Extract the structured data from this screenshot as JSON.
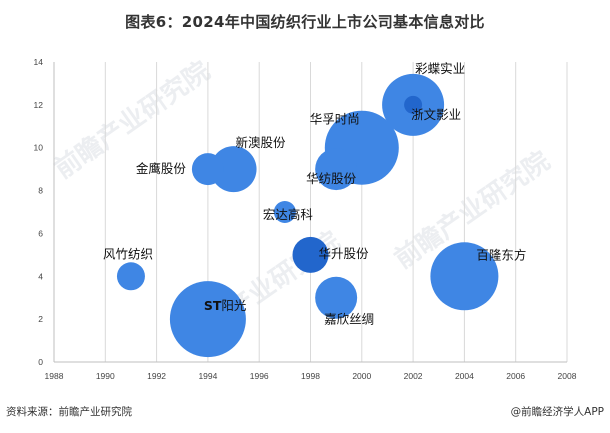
{
  "title": "图表6：2024年中国纺织行业上市公司基本信息对比",
  "footer": {
    "source": "资料来源：前瞻产业研究院",
    "credit": "@前瞻经济学人APP"
  },
  "watermark": "前瞻产业研究院",
  "colors": {
    "bubble": "#3f86e4",
    "bubble_dark": "#2266cc",
    "grid": "#d9d9d9",
    "axis": "#bfbfbf"
  },
  "chart_data": {
    "type": "bubble",
    "title": "图表6：2024年中国纺织行业上市公司基本信息对比",
    "xlabel": "",
    "ylabel": "",
    "xlim": [
      1988,
      2008
    ],
    "ylim": [
      0,
      14
    ],
    "x_ticks": [
      1988,
      1990,
      1992,
      1994,
      1996,
      1998,
      2000,
      2002,
      2004,
      2006,
      2008
    ],
    "y_ticks": [
      0,
      2,
      4,
      6,
      8,
      10,
      12,
      14
    ],
    "grid": "vertical",
    "legend": "none",
    "points": [
      {
        "label": "风竹纺织",
        "x": 1991,
        "y": 4,
        "r": 14,
        "color": "#3f86e4"
      },
      {
        "label": "ST阳光",
        "x": 1994,
        "y": 2,
        "r": 38,
        "color": "#3f86e4"
      },
      {
        "label": "金鹰股份",
        "x": 1994,
        "y": 9,
        "r": 16,
        "color": "#3f86e4"
      },
      {
        "label": "新澳股份",
        "x": 1995,
        "y": 9,
        "r": 23,
        "color": "#3f86e4"
      },
      {
        "label": "宏达高科",
        "x": 1997,
        "y": 7,
        "r": 11,
        "color": "#3f86e4"
      },
      {
        "label": "华升股份",
        "x": 1998,
        "y": 5,
        "r": 18,
        "color": "#2266cc"
      },
      {
        "label": "嘉欣丝绸",
        "x": 1999,
        "y": 3,
        "r": 21,
        "color": "#3f86e4"
      },
      {
        "label": "华纺股份",
        "x": 1999,
        "y": 9,
        "r": 21,
        "color": "#3f86e4"
      },
      {
        "label": "华孚时尚",
        "x": 2000,
        "y": 10,
        "r": 37,
        "color": "#3f86e4"
      },
      {
        "label": "彩蝶实业",
        "x": 2002,
        "y": 12,
        "r": 31,
        "color": "#3f86e4"
      },
      {
        "label": "浙文影业",
        "x": 2002,
        "y": 12,
        "r": 9,
        "color": "#2266cc"
      },
      {
        "label": "百隆东方",
        "x": 2004,
        "y": 4,
        "r": 34,
        "color": "#3f86e4"
      }
    ],
    "label_offsets": {
      "风竹纺织": [
        -28,
        -18
      ],
      "ST阳光": [
        -4,
        -9
      ],
      "金鹰股份": [
        -72,
        4
      ],
      "新澳股份": [
        2,
        -22
      ],
      "宏达高科": [
        -22,
        7
      ],
      "华升股份": [
        8,
        3
      ],
      "嘉欣丝绸": [
        -12,
        26
      ],
      "华纺股份": [
        -30,
        14
      ],
      "华孚时尚": [
        -52,
        -24
      ],
      "彩蝶实业": [
        2,
        -32
      ],
      "浙文影业": [
        -2,
        14
      ],
      "百隆东方": [
        12,
        -17
      ]
    }
  }
}
